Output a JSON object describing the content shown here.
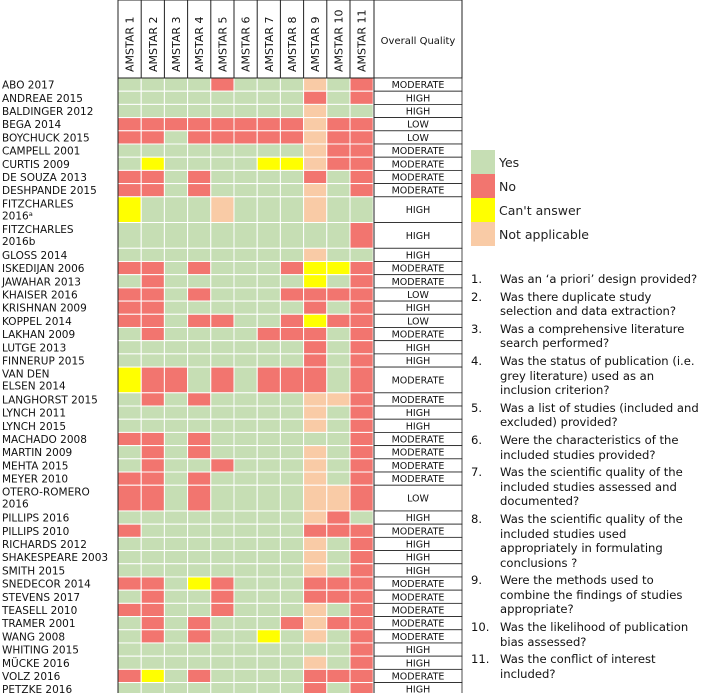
{
  "chart_data": {
    "type": "heatmap",
    "columns": [
      "AMSTAR 1",
      "AMSTAR 2",
      "AMSTAR 3",
      "AMSTAR 4",
      "AMSTAR 5",
      "AMSTAR 6",
      "AMSTAR 7",
      "AMSTAR 8",
      "AMSTAR 9",
      "AMSTAR 10",
      "AMSTAR 11"
    ],
    "quality_header": "Overall Quality",
    "category_codes": {
      "Y": "Yes",
      "N": "No",
      "C": "Can't answer",
      "A": "Not applicable"
    },
    "colors": {
      "Y": "#c6deb4",
      "N": "#f2756f",
      "C": "#ffff00",
      "A": "#f9cba6"
    },
    "rows": [
      {
        "study": "ABO 2017",
        "cells": [
          "Y",
          "Y",
          "Y",
          "Y",
          "N",
          "Y",
          "Y",
          "Y",
          "A",
          "Y",
          "N"
        ],
        "quality": "MODERATE"
      },
      {
        "study": "ANDREAE 2015",
        "cells": [
          "Y",
          "Y",
          "Y",
          "Y",
          "Y",
          "Y",
          "Y",
          "Y",
          "N",
          "Y",
          "N"
        ],
        "quality": "HIGH"
      },
      {
        "study": "BALDINGER 2012",
        "cells": [
          "Y",
          "Y",
          "Y",
          "Y",
          "Y",
          "Y",
          "Y",
          "Y",
          "A",
          "Y",
          "Y"
        ],
        "quality": "HIGH"
      },
      {
        "study": "BEGA 2014",
        "cells": [
          "N",
          "N",
          "N",
          "N",
          "N",
          "N",
          "N",
          "N",
          "A",
          "N",
          "N"
        ],
        "quality": "LOW"
      },
      {
        "study": "BOYCHUCK 2015",
        "cells": [
          "N",
          "N",
          "Y",
          "N",
          "N",
          "N",
          "N",
          "N",
          "A",
          "N",
          "N"
        ],
        "quality": "LOW"
      },
      {
        "study": "CAMPELL 2001",
        "cells": [
          "Y",
          "Y",
          "Y",
          "Y",
          "Y",
          "Y",
          "Y",
          "Y",
          "A",
          "N",
          "N"
        ],
        "quality": "MODERATE"
      },
      {
        "study": "CURTIS 2009",
        "cells": [
          "Y",
          "C",
          "Y",
          "Y",
          "Y",
          "Y",
          "C",
          "C",
          "A",
          "N",
          "N"
        ],
        "quality": "MODERATE"
      },
      {
        "study": "DE SOUZA 2013",
        "cells": [
          "N",
          "N",
          "Y",
          "N",
          "Y",
          "Y",
          "Y",
          "Y",
          "N",
          "Y",
          "N"
        ],
        "quality": "MODERATE"
      },
      {
        "study": "DESHPANDE 2015",
        "cells": [
          "N",
          "N",
          "Y",
          "N",
          "Y",
          "Y",
          "Y",
          "Y",
          "A",
          "Y",
          "N"
        ],
        "quality": "MODERATE"
      },
      {
        "study": "FITZCHARLES 2016ᵃ",
        "cells": [
          "C",
          "Y",
          "Y",
          "Y",
          "A",
          "Y",
          "Y",
          "Y",
          "A",
          "Y",
          "Y"
        ],
        "quality": "HIGH"
      },
      {
        "study": "FITZCHARLES 2016b",
        "cells": [
          "Y",
          "Y",
          "Y",
          "Y",
          "Y",
          "Y",
          "Y",
          "Y",
          "Y",
          "Y",
          "N"
        ],
        "quality": "HIGH"
      },
      {
        "study": "GLOSS 2014",
        "cells": [
          "Y",
          "Y",
          "Y",
          "Y",
          "Y",
          "Y",
          "Y",
          "Y",
          "A",
          "Y",
          "Y"
        ],
        "quality": "HIGH"
      },
      {
        "study": "ISKEDIJAN 2006",
        "cells": [
          "N",
          "N",
          "Y",
          "N",
          "Y",
          "Y",
          "Y",
          "N",
          "C",
          "C",
          "N"
        ],
        "quality": "MODERATE"
      },
      {
        "study": "JAWAHAR 2013",
        "cells": [
          "Y",
          "N",
          "Y",
          "Y",
          "Y",
          "Y",
          "Y",
          "Y",
          "C",
          "Y",
          "N"
        ],
        "quality": "MODERATE"
      },
      {
        "study": "KHAISER 2016",
        "cells": [
          "N",
          "N",
          "Y",
          "N",
          "Y",
          "Y",
          "Y",
          "N",
          "N",
          "N",
          "N"
        ],
        "quality": "LOW"
      },
      {
        "study": "KRISHNAN 2009",
        "cells": [
          "N",
          "N",
          "Y",
          "Y",
          "Y",
          "Y",
          "Y",
          "Y",
          "N",
          "Y",
          "N"
        ],
        "quality": "HIGH"
      },
      {
        "study": "KOPPEL 2014",
        "cells": [
          "N",
          "N",
          "Y",
          "N",
          "N",
          "Y",
          "Y",
          "N",
          "C",
          "N",
          "N"
        ],
        "quality": "LOW"
      },
      {
        "study": "LAKHAN 2009",
        "cells": [
          "Y",
          "N",
          "Y",
          "Y",
          "Y",
          "Y",
          "N",
          "N",
          "N",
          "Y",
          "N"
        ],
        "quality": "MODERATE"
      },
      {
        "study": "LUTGE 2013",
        "cells": [
          "Y",
          "Y",
          "Y",
          "Y",
          "Y",
          "Y",
          "Y",
          "Y",
          "N",
          "Y",
          "N"
        ],
        "quality": "HIGH"
      },
      {
        "study": "FINNERUP 2015",
        "cells": [
          "Y",
          "Y",
          "Y",
          "Y",
          "Y",
          "Y",
          "Y",
          "Y",
          "N",
          "Y",
          "N"
        ],
        "quality": "HIGH"
      },
      {
        "study": "VAN DEN ELSEN 2014",
        "cells": [
          "C",
          "N",
          "N",
          "Y",
          "N",
          "Y",
          "N",
          "N",
          "N",
          "Y",
          "N"
        ],
        "quality": "MODERATE"
      },
      {
        "study": "LANGHORST 2015",
        "cells": [
          "Y",
          "N",
          "Y",
          "N",
          "Y",
          "Y",
          "Y",
          "Y",
          "A",
          "A",
          "N"
        ],
        "quality": "MODERATE"
      },
      {
        "study": "LYNCH 2011",
        "cells": [
          "Y",
          "Y",
          "Y",
          "Y",
          "Y",
          "Y",
          "Y",
          "Y",
          "A",
          "Y",
          "N"
        ],
        "quality": "HIGH"
      },
      {
        "study": "LYNCH 2015",
        "cells": [
          "Y",
          "Y",
          "Y",
          "Y",
          "Y",
          "Y",
          "Y",
          "Y",
          "A",
          "Y",
          "N"
        ],
        "quality": "HIGH"
      },
      {
        "study": "MACHADO 2008",
        "cells": [
          "N",
          "N",
          "Y",
          "N",
          "Y",
          "Y",
          "Y",
          "Y",
          "Y",
          "Y",
          "N"
        ],
        "quality": "MODERATE"
      },
      {
        "study": "MARTIN 2009",
        "cells": [
          "Y",
          "N",
          "Y",
          "N",
          "Y",
          "Y",
          "Y",
          "Y",
          "A",
          "Y",
          "N"
        ],
        "quality": "MODERATE"
      },
      {
        "study": "MEHTA 2015",
        "cells": [
          "Y",
          "N",
          "Y",
          "Y",
          "N",
          "Y",
          "Y",
          "Y",
          "A",
          "Y",
          "N"
        ],
        "quality": "MODERATE"
      },
      {
        "study": "MEYER 2010",
        "cells": [
          "N",
          "N",
          "Y",
          "N",
          "Y",
          "Y",
          "Y",
          "Y",
          "A",
          "Y",
          "N"
        ],
        "quality": "MODERATE"
      },
      {
        "study": "OTERO-ROMERO 2016",
        "cells": [
          "N",
          "N",
          "Y",
          "N",
          "Y",
          "Y",
          "Y",
          "Y",
          "A",
          "A",
          "N"
        ],
        "quality": "LOW"
      },
      {
        "study": "PILLIPS 2016",
        "cells": [
          "Y",
          "Y",
          "Y",
          "Y",
          "Y",
          "Y",
          "Y",
          "Y",
          "A",
          "N",
          "Y"
        ],
        "quality": "HIGH"
      },
      {
        "study": "PILLIPS 2010",
        "cells": [
          "N",
          "Y",
          "Y",
          "Y",
          "Y",
          "Y",
          "Y",
          "Y",
          "N",
          "N",
          "N"
        ],
        "quality": "MODERATE"
      },
      {
        "study": "RICHARDS 2012",
        "cells": [
          "Y",
          "Y",
          "Y",
          "Y",
          "Y",
          "Y",
          "Y",
          "Y",
          "A",
          "Y",
          "N"
        ],
        "quality": "HIGH"
      },
      {
        "study": "SHAKESPEARE 2003",
        "cells": [
          "Y",
          "Y",
          "Y",
          "Y",
          "Y",
          "Y",
          "Y",
          "Y",
          "A",
          "Y",
          "N"
        ],
        "quality": "HIGH"
      },
      {
        "study": "SMITH 2015",
        "cells": [
          "Y",
          "Y",
          "Y",
          "Y",
          "Y",
          "Y",
          "Y",
          "Y",
          "A",
          "Y",
          "N"
        ],
        "quality": "HIGH"
      },
      {
        "study": "SNEDECOR 2014",
        "cells": [
          "N",
          "N",
          "Y",
          "C",
          "N",
          "Y",
          "Y",
          "Y",
          "N",
          "N",
          "N"
        ],
        "quality": "MODERATE"
      },
      {
        "study": "STEVENS 2017",
        "cells": [
          "Y",
          "N",
          "Y",
          "Y",
          "N",
          "Y",
          "Y",
          "Y",
          "N",
          "N",
          "N"
        ],
        "quality": "MODERATE"
      },
      {
        "study": "TEASELL 2010",
        "cells": [
          "N",
          "N",
          "Y",
          "Y",
          "N",
          "Y",
          "Y",
          "Y",
          "A",
          "Y",
          "N"
        ],
        "quality": "MODERATE"
      },
      {
        "study": "TRAMER 2001",
        "cells": [
          "Y",
          "N",
          "Y",
          "N",
          "Y",
          "Y",
          "Y",
          "N",
          "A",
          "N",
          "N"
        ],
        "quality": "MODERATE"
      },
      {
        "study": "WANG 2008",
        "cells": [
          "Y",
          "N",
          "Y",
          "N",
          "Y",
          "Y",
          "C",
          "Y",
          "A",
          "Y",
          "N"
        ],
        "quality": "MODERATE"
      },
      {
        "study": "WHITING 2015",
        "cells": [
          "Y",
          "Y",
          "Y",
          "Y",
          "Y",
          "Y",
          "Y",
          "Y",
          "Y",
          "Y",
          "N"
        ],
        "quality": "HIGH"
      },
      {
        "study": "MÜCKE 2016",
        "cells": [
          "Y",
          "Y",
          "Y",
          "Y",
          "Y",
          "Y",
          "Y",
          "Y",
          "A",
          "Y",
          "N"
        ],
        "quality": "HIGH"
      },
      {
        "study": "VOLZ 2016",
        "cells": [
          "N",
          "C",
          "Y",
          "N",
          "Y",
          "Y",
          "Y",
          "Y",
          "N",
          "N",
          "N"
        ],
        "quality": "MODERATE"
      },
      {
        "study": "PETZKE 2016",
        "cells": [
          "Y",
          "Y",
          "Y",
          "Y",
          "Y",
          "Y",
          "Y",
          "Y",
          "N",
          "Y",
          "N"
        ],
        "quality": "HIGH"
      }
    ]
  },
  "legend": [
    {
      "code": "Y",
      "label": "Yes"
    },
    {
      "code": "N",
      "label": "No"
    },
    {
      "code": "C",
      "label": "Can't answer"
    },
    {
      "code": "A",
      "label": "Not applicable"
    }
  ],
  "questions": [
    {
      "num": "1.",
      "text": "Was an ‘a priori’ design provided?"
    },
    {
      "num": "2.",
      "text": "Was there duplicate study selection and data extraction?"
    },
    {
      "num": "3.",
      "text": "Was a comprehensive literature search performed?"
    },
    {
      "num": "4.",
      "text": "Was the status of publication (i.e. grey literature) used as an inclusion criterion?"
    },
    {
      "num": "5.",
      "text": "Was a list of studies (included and excluded) provided?"
    },
    {
      "num": "6.",
      "text": "Were the characteristics of the included studies provided?"
    },
    {
      "num": "7.",
      "text": "Was the scientific quality of the included studies assessed and documented?"
    },
    {
      "num": "8.",
      "text": "Was the scientific quality of the included studies used appropriately in formulating conclusions ?"
    },
    {
      "num": "9.",
      "text": "Were the methods used to combine the findings of studies appropriate?"
    },
    {
      "num": "10.",
      "text": "Was the likelihood of publication bias assessed?"
    },
    {
      "num": "11.",
      "text": "Was the conflict of interest included?"
    }
  ]
}
